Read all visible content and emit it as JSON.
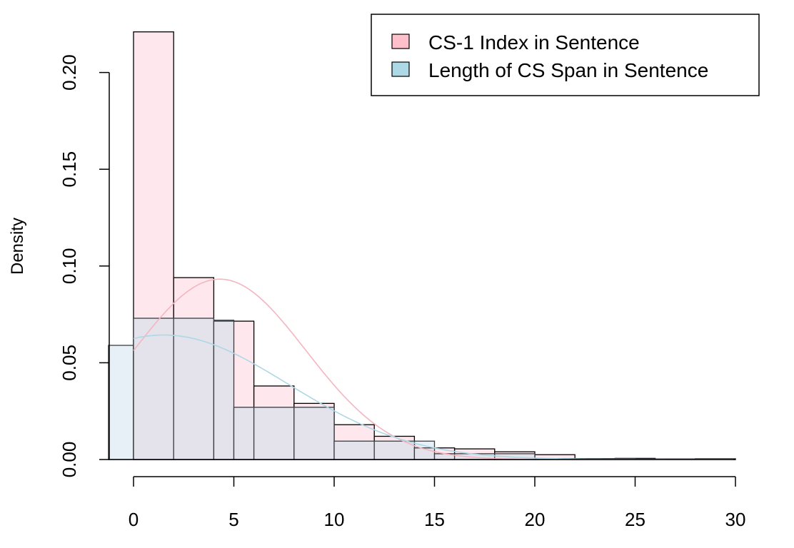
{
  "chart_data": {
    "type": "histogram",
    "title": "",
    "xlabel": "",
    "ylabel": "Density",
    "xlim": [
      -1.25,
      30
    ],
    "ylim": [
      0,
      0.22
    ],
    "x_ticks": [
      0,
      5,
      10,
      15,
      20,
      25,
      30
    ],
    "y_ticks": [
      0.0,
      0.05,
      0.1,
      0.15,
      0.2
    ],
    "y_tick_labels": [
      "0.00",
      "0.05",
      "0.10",
      "0.15",
      "0.20"
    ],
    "legend_position": "top-right",
    "grid": false,
    "series": [
      {
        "name": "Length of CS Span in Sentence",
        "fill": "#e6f0f6",
        "curve_color": "#add8e6",
        "legend_swatch": "#add8e6",
        "bins": [
          {
            "x0": -1.25,
            "x1": 0,
            "density": 0.059
          },
          {
            "x0": 0,
            "x1": 2,
            "density": 0.073
          },
          {
            "x0": 2,
            "x1": 4,
            "density": 0.073
          },
          {
            "x0": 4,
            "x1": 5,
            "density": 0.072
          },
          {
            "x0": 5,
            "x1": 6,
            "density": 0.027
          },
          {
            "x0": 6,
            "x1": 8,
            "density": 0.027
          },
          {
            "x0": 8,
            "x1": 10,
            "density": 0.027
          },
          {
            "x0": 10,
            "x1": 12,
            "density": 0.0095
          },
          {
            "x0": 12,
            "x1": 14,
            "density": 0.0095
          },
          {
            "x0": 14,
            "x1": 15,
            "density": 0.0095
          },
          {
            "x0": 15,
            "x1": 20,
            "density": 0.003
          },
          {
            "x0": 20,
            "x1": 25,
            "density": 0.0005
          },
          {
            "x0": 25,
            "x1": 30,
            "density": 0.0003
          }
        ],
        "normal_curve": {
          "mean": 1.5,
          "sd": 6.2
        }
      },
      {
        "name": "CS-1 Index in Sentence",
        "fill": "#ffe4ea",
        "curve_color": "#f5b5c0",
        "legend_swatch": "#ffc0cb",
        "bins": [
          {
            "x0": 0,
            "x1": 2,
            "density": 0.221
          },
          {
            "x0": 2,
            "x1": 4,
            "density": 0.094
          },
          {
            "x0": 4,
            "x1": 6,
            "density": 0.0715
          },
          {
            "x0": 6,
            "x1": 8,
            "density": 0.038
          },
          {
            "x0": 8,
            "x1": 10,
            "density": 0.029
          },
          {
            "x0": 10,
            "x1": 12,
            "density": 0.018
          },
          {
            "x0": 12,
            "x1": 14,
            "density": 0.012
          },
          {
            "x0": 14,
            "x1": 16,
            "density": 0.006
          },
          {
            "x0": 16,
            "x1": 18,
            "density": 0.0055
          },
          {
            "x0": 18,
            "x1": 20,
            "density": 0.004
          },
          {
            "x0": 20,
            "x1": 22,
            "density": 0.0025
          },
          {
            "x0": 22,
            "x1": 24,
            "density": 0.0004
          },
          {
            "x0": 24,
            "x1": 26,
            "density": 0.0006
          },
          {
            "x0": 26,
            "x1": 28,
            "density": 0.0002
          },
          {
            "x0": 28,
            "x1": 30,
            "density": 0.0004
          }
        ],
        "normal_curve": {
          "mean": 4.3,
          "sd": 4.28
        }
      }
    ],
    "legend": [
      {
        "label": "CS-1 Index in Sentence",
        "swatch": "#ffc0cb"
      },
      {
        "label": "Length of CS Span in Sentence",
        "swatch": "#add8e6"
      }
    ]
  }
}
